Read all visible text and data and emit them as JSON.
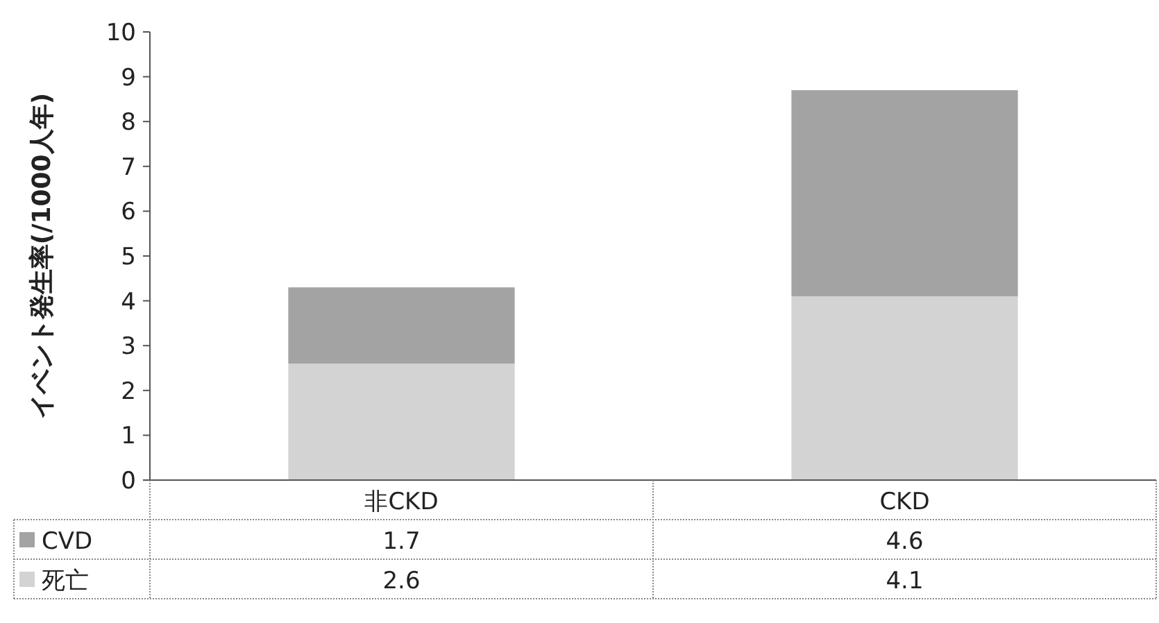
{
  "chart_data": {
    "type": "bar",
    "stacked": true,
    "ylabel": "イベント発生率(/1000人年)",
    "categories": [
      "非CKD",
      "CKD"
    ],
    "series": [
      {
        "name": "死亡",
        "color": "#d3d3d3",
        "values": [
          2.6,
          4.1
        ]
      },
      {
        "name": "CVD",
        "color": "#a3a3a3",
        "values": [
          1.7,
          4.6
        ]
      }
    ],
    "ylim": [
      0,
      10
    ],
    "yticks": [
      0,
      1,
      2,
      3,
      4,
      5,
      6,
      7,
      8,
      9,
      10
    ],
    "data_labels": true,
    "legend": "bottom left",
    "grid": false
  }
}
